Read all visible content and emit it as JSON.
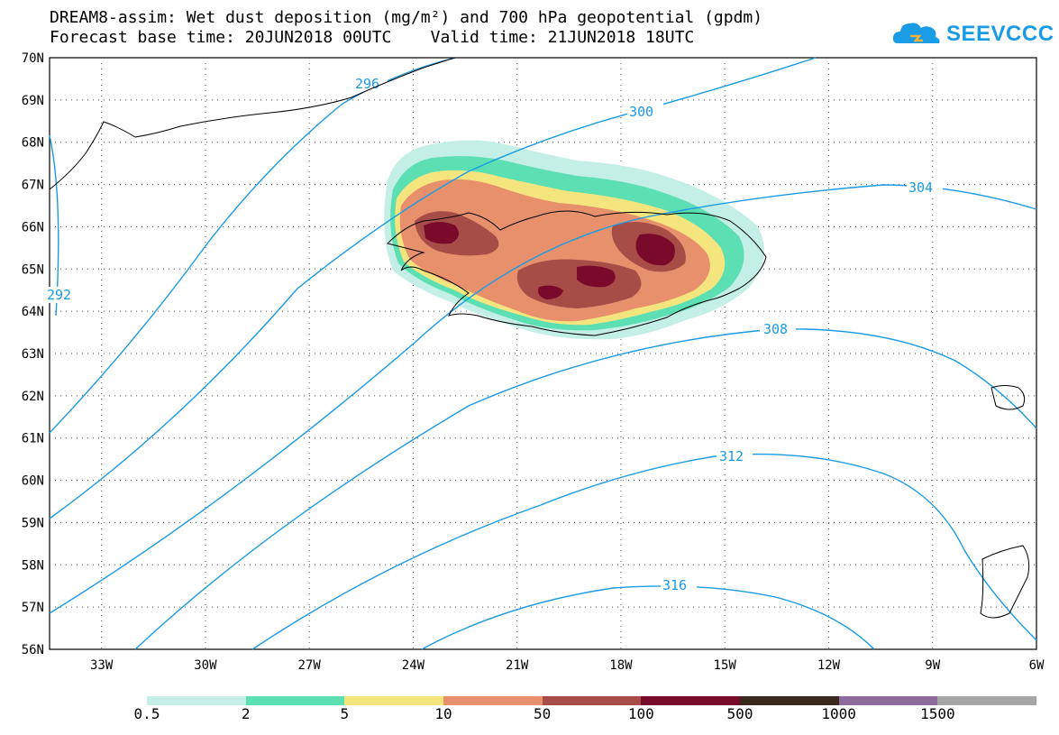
{
  "title": {
    "line1": "DREAM8-assim: Wet dust deposition (mg/m²) and 700 hPa geopotential (gpdm)",
    "line2": "Forecast base time: 20JUN2018 00UTC    Valid time: 21JUN2018 18UTC"
  },
  "logo": {
    "text": "SEEVCCC",
    "icon": "cloud-icon",
    "color": "#1a9be6"
  },
  "map": {
    "lat_labels": [
      "70N",
      "69N",
      "68N",
      "67N",
      "66N",
      "65N",
      "64N",
      "63N",
      "62N",
      "61N",
      "60N",
      "59N",
      "58N",
      "57N",
      "56N"
    ],
    "lon_labels": [
      "33W",
      "30W",
      "27W",
      "24W",
      "21W",
      "18W",
      "15W",
      "12W",
      "9W",
      "6W"
    ],
    "lat_range": [
      56,
      70
    ],
    "lon_range": [
      -34.5,
      -6
    ],
    "grid": true
  },
  "contours": {
    "color": "#1a9be6",
    "labels": [
      "292",
      "296",
      "300",
      "304",
      "308",
      "312",
      "316"
    ]
  },
  "colorbar": {
    "colors": [
      "#c4efe6",
      "#5ddfb4",
      "#f5e57e",
      "#e8906c",
      "#a84c47",
      "#7a0a2c",
      "#3a2a1e",
      "#8e6b9c",
      "#a6a6a6"
    ],
    "labels": [
      "0.5",
      "2",
      "5",
      "10",
      "50",
      "100",
      "500",
      "1000",
      "1500"
    ]
  },
  "chart_data": {
    "type": "heatmap",
    "title": "DREAM8-assim: Wet dust deposition (mg/m²) and 700 hPa geopotential (gpdm)",
    "xlabel": "",
    "ylabel": "",
    "xlim": [
      -34.5,
      -6
    ],
    "ylim": [
      56,
      70
    ],
    "contour_levels": [
      292,
      296,
      300,
      304,
      308,
      312,
      316
    ],
    "color_levels": [
      0.5,
      2,
      5,
      10,
      50,
      100,
      500,
      1000,
      1500
    ]
  }
}
